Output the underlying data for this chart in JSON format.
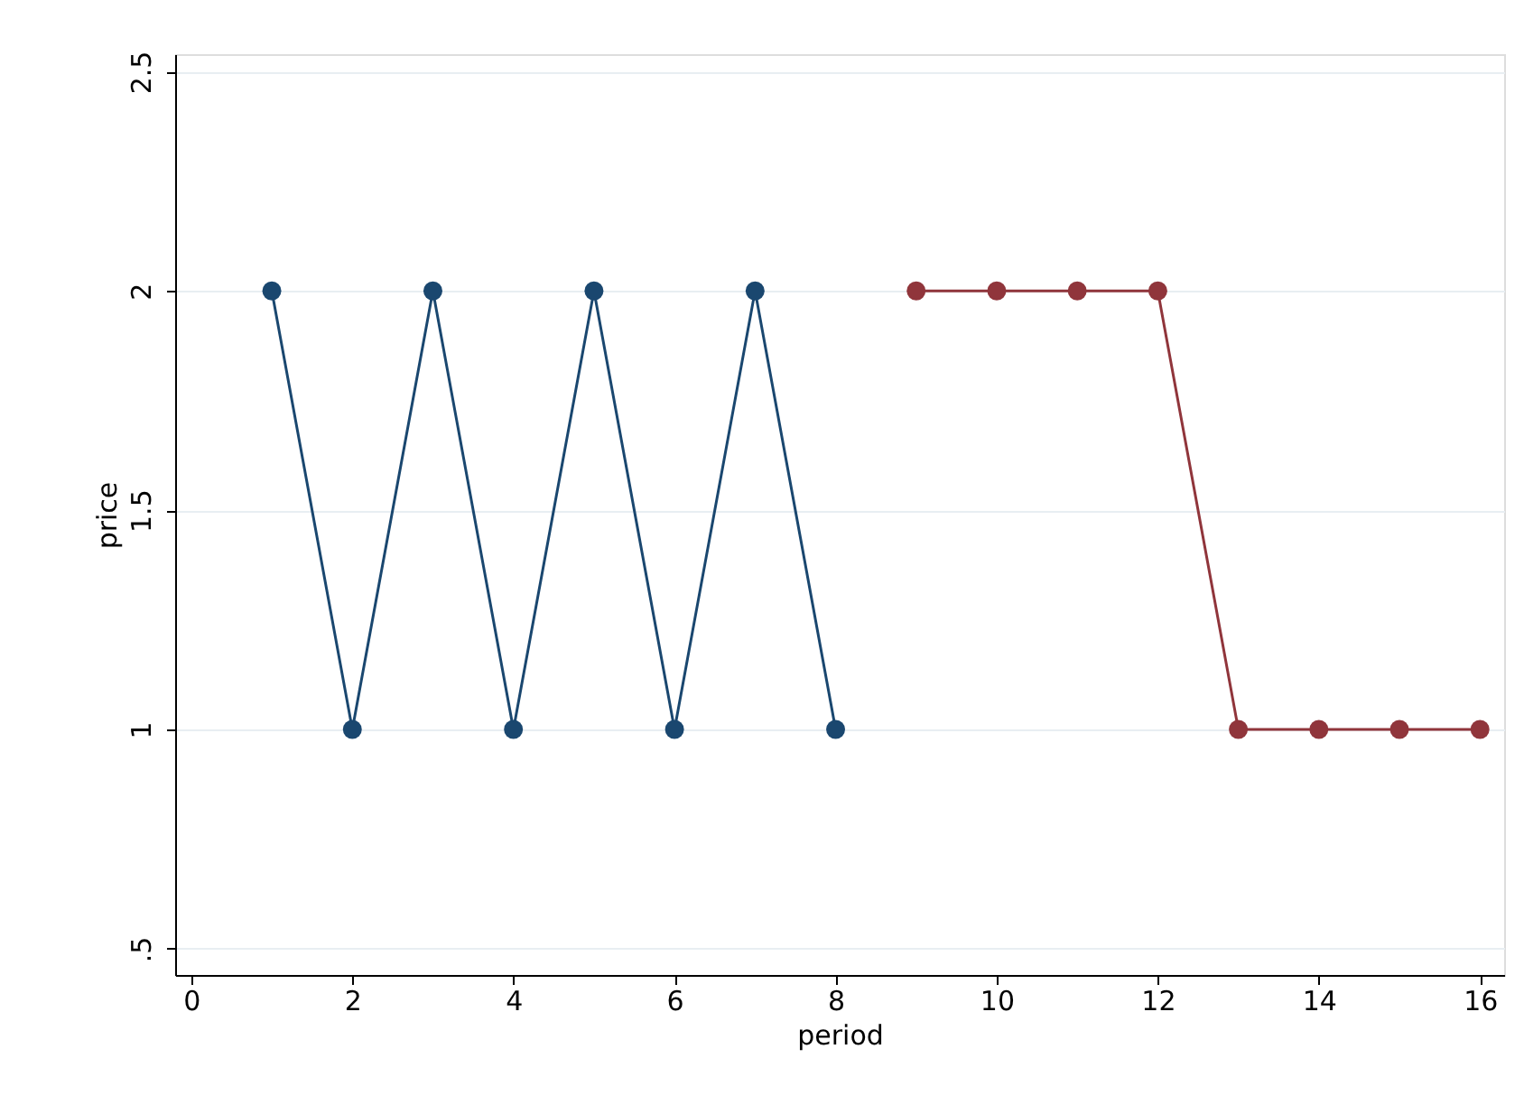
{
  "chart_data": {
    "type": "line",
    "xlabel": "period",
    "ylabel": "price",
    "xlim": [
      -0.2,
      16.3
    ],
    "xticks": [
      0,
      2,
      4,
      6,
      8,
      10,
      12,
      14,
      16
    ],
    "ylim": [
      0.44,
      2.54
    ],
    "yticks": [
      {
        "value": 0.5,
        "label": ".5"
      },
      1,
      1.5,
      2,
      2.5
    ],
    "grid": "y",
    "legend": false,
    "marker": "circle",
    "line_style": "solid",
    "series": [
      {
        "color": "#1a476f",
        "x": [
          1,
          2,
          3,
          4,
          5,
          6,
          7,
          8
        ],
        "values": [
          2,
          1,
          2,
          1,
          2,
          1,
          2,
          1
        ]
      },
      {
        "color": "#90353b",
        "x": [
          9,
          10,
          11,
          12,
          13,
          14,
          15,
          16
        ],
        "values": [
          2,
          2,
          2,
          2,
          1,
          1,
          1,
          1
        ]
      }
    ]
  }
}
